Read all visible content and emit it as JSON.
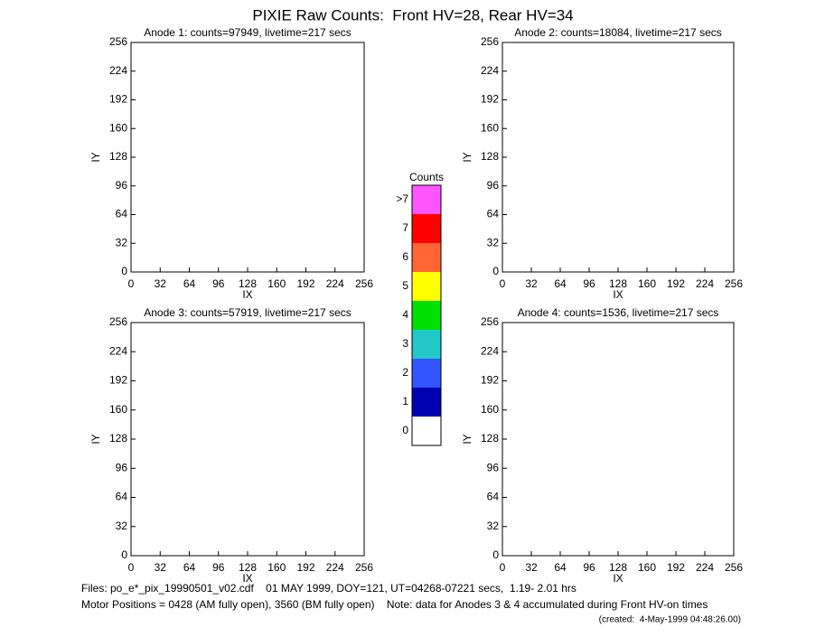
{
  "title": "PIXIE Raw Counts:  Front HV=28, Rear HV=34",
  "chart_data": [
    {
      "type": "heatmap",
      "title": "Anode 1: counts=97949, livetime=217 secs",
      "xlabel": "IX",
      "ylabel": "IY",
      "xlim": [
        0,
        256
      ],
      "ylim": [
        0,
        256
      ],
      "xticks": [
        0,
        32,
        64,
        96,
        128,
        160,
        192,
        224,
        256
      ],
      "yticks": [
        0,
        32,
        64,
        96,
        128,
        160,
        192,
        224,
        256
      ]
    },
    {
      "type": "heatmap",
      "title": "Anode 2: counts=18084, livetime=217 secs",
      "xlabel": "IX",
      "ylabel": "IY",
      "xlim": [
        0,
        256
      ],
      "ylim": [
        0,
        256
      ],
      "xticks": [
        0,
        32,
        64,
        96,
        128,
        160,
        192,
        224,
        256
      ],
      "yticks": [
        0,
        32,
        64,
        96,
        128,
        160,
        192,
        224,
        256
      ]
    },
    {
      "type": "heatmap",
      "title": "Anode 3: counts=57919, livetime=217 secs",
      "xlabel": "IX",
      "ylabel": "IY",
      "xlim": [
        0,
        256
      ],
      "ylim": [
        0,
        256
      ],
      "xticks": [
        0,
        32,
        64,
        96,
        128,
        160,
        192,
        224,
        256
      ],
      "yticks": [
        0,
        32,
        64,
        96,
        128,
        160,
        192,
        224,
        256
      ]
    },
    {
      "type": "heatmap",
      "title": "Anode 4: counts=1536, livetime=217 secs",
      "xlabel": "IX",
      "ylabel": "IY",
      "xlim": [
        0,
        256
      ],
      "ylim": [
        0,
        256
      ],
      "xticks": [
        0,
        32,
        64,
        96,
        128,
        160,
        192,
        224,
        256
      ],
      "yticks": [
        0,
        32,
        64,
        96,
        128,
        160,
        192,
        224,
        256
      ]
    }
  ],
  "colorbar": {
    "title": "Counts",
    "levels": [
      {
        "label": "0",
        "color": "#ffffff"
      },
      {
        "label": "1",
        "color": "#0000b0"
      },
      {
        "label": "2",
        "color": "#3355ff"
      },
      {
        "label": "3",
        "color": "#22c8c8"
      },
      {
        "label": "4",
        "color": "#00e000"
      },
      {
        "label": "5",
        "color": "#ffff00"
      },
      {
        "label": "6",
        "color": "#ff6633"
      },
      {
        "label": "7",
        "color": "#ff0000"
      },
      {
        "label": ">7",
        "color": "#ff55ff"
      }
    ]
  },
  "footer": [
    "Files: po_e*_pix_19990501_v02.cdf    01 MAY 1999, DOY=121, UT=04268-07221 secs,  1.19- 2.01 hrs",
    "Motor Positions = 0428 (AM fully open), 3560 (BM fully open)    Note: data for Anodes 3 & 4 accumulated during Front HV-on times"
  ],
  "created": "(created:  4-May-1999 04:48:26.00)"
}
